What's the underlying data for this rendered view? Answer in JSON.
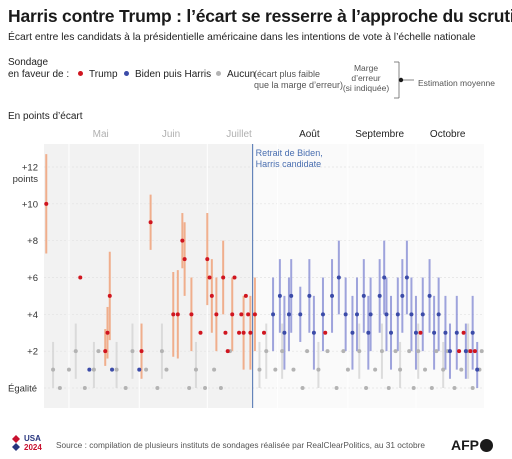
{
  "title": "Harris contre Trump : l’écart se resserre à l’approche du scrutin",
  "subtitle": "Écart entre les candidats à la présidentielle américaine dans les intentions de vote à l’échelle nationale",
  "legend": {
    "heading_line1": "Sondage",
    "heading_line2": "en faveur de :",
    "trump": "Trump",
    "biden_harris": "Biden puis Harris",
    "none": "Aucun",
    "none_note_line1": "(écart plus faible",
    "none_note_line2": "que la marge d’erreur)",
    "error_line1": "Marge",
    "error_line2": "d’erreur",
    "error_line3": "(si indiquée)",
    "estimate": "Estimation moyenne"
  },
  "unit_label": "En points d’écart",
  "footer": {
    "source": "Source : compilation de plusieurs instituts de sondages réalisée par RealClearPolitics, au 31 octobre",
    "logo_text_1": "USA",
    "logo_text_2": "2024",
    "agency": "AFP"
  },
  "colors": {
    "trump": "#d0151f",
    "biden_harris": "#3b4ba8",
    "none": "#b3b3b3",
    "trump_band": "#f0a27a",
    "biden_band": "#8d93d6",
    "none_band": "#d6d6d6",
    "shade": "#f2f2f2",
    "annotation": "#4a6fb0"
  },
  "chart_data": {
    "type": "scatter",
    "title": "",
    "xlabel": "",
    "ylabel": "En points d’écart",
    "x_axis": {
      "domain": [
        "2024-04-20",
        "2024-10-31"
      ],
      "month_labels": [
        {
          "label": "Mai",
          "date": "2024-05-15",
          "muted": true
        },
        {
          "label": "Juin",
          "date": "2024-06-15",
          "muted": true
        },
        {
          "label": "Juillet",
          "date": "2024-07-15",
          "muted": true
        },
        {
          "label": "Août",
          "date": "2024-08-15",
          "muted": false
        },
        {
          "label": "Septembre",
          "date": "2024-09-15",
          "muted": false
        },
        {
          "label": "Octobre",
          "date": "2024-10-15",
          "muted": false
        }
      ],
      "muted_until": "2024-07-21"
    },
    "y_axis": {
      "range": [
        0,
        13
      ],
      "ticks": [
        {
          "value": 12,
          "label": "+12"
        },
        {
          "value": 10,
          "label": "+10"
        },
        {
          "value": 8,
          "label": "+8"
        },
        {
          "value": 6,
          "label": "+6"
        },
        {
          "value": 4,
          "label": "+4"
        },
        {
          "value": 2,
          "label": "+2"
        },
        {
          "value": 0,
          "label": "Égalité"
        }
      ],
      "top_unit": "points"
    },
    "annotation": {
      "date": "2024-07-21",
      "line1": "Retrait de Biden,",
      "line2": "Harris candidate"
    },
    "series": [
      {
        "name": "Trump",
        "key": "trump",
        "points": [
          {
            "date": "2024-04-21",
            "v": 10,
            "lo": 7.3,
            "hi": 12.7
          },
          {
            "date": "2024-05-06",
            "v": 6
          },
          {
            "date": "2024-05-17",
            "v": 2,
            "lo": 1.2,
            "hi": 3.2
          },
          {
            "date": "2024-05-18",
            "v": 3,
            "lo": 1.6,
            "hi": 4.4
          },
          {
            "date": "2024-05-19",
            "v": 5,
            "lo": 2.6,
            "hi": 7.4
          },
          {
            "date": "2024-06-02",
            "v": 2,
            "lo": 0.5,
            "hi": 3.5
          },
          {
            "date": "2024-06-06",
            "v": 9,
            "lo": 7.5,
            "hi": 10.5
          },
          {
            "date": "2024-06-16",
            "v": 4,
            "lo": 1.7,
            "hi": 6.3
          },
          {
            "date": "2024-06-18",
            "v": 4,
            "lo": 1.6,
            "hi": 6.4
          },
          {
            "date": "2024-06-20",
            "v": 8,
            "lo": 6.5,
            "hi": 9.5
          },
          {
            "date": "2024-06-21",
            "v": 7,
            "lo": 5,
            "hi": 9
          },
          {
            "date": "2024-06-24",
            "v": 4,
            "lo": 2,
            "hi": 6
          },
          {
            "date": "2024-06-28",
            "v": 3
          },
          {
            "date": "2024-07-01",
            "v": 7,
            "lo": 4.5,
            "hi": 9.5
          },
          {
            "date": "2024-07-02",
            "v": 6
          },
          {
            "date": "2024-07-03",
            "v": 5,
            "lo": 3,
            "hi": 7
          },
          {
            "date": "2024-07-05",
            "v": 4,
            "lo": 2,
            "hi": 6
          },
          {
            "date": "2024-07-08",
            "v": 6,
            "lo": 4,
            "hi": 8
          },
          {
            "date": "2024-07-09",
            "v": 3
          },
          {
            "date": "2024-07-10",
            "v": 2
          },
          {
            "date": "2024-07-12",
            "v": 4,
            "lo": 2,
            "hi": 6
          },
          {
            "date": "2024-07-13",
            "v": 6
          },
          {
            "date": "2024-07-15",
            "v": 3
          },
          {
            "date": "2024-07-16",
            "v": 4
          },
          {
            "date": "2024-07-17",
            "v": 3,
            "lo": 1,
            "hi": 5
          },
          {
            "date": "2024-07-18",
            "v": 5
          },
          {
            "date": "2024-07-19",
            "v": 4
          },
          {
            "date": "2024-07-20",
            "v": 3,
            "lo": 1,
            "hi": 5
          },
          {
            "date": "2024-07-22",
            "v": 4,
            "lo": 2,
            "hi": 6
          },
          {
            "date": "2024-07-26",
            "v": 3
          },
          {
            "date": "2024-08-22",
            "v": 3
          },
          {
            "date": "2024-10-03",
            "v": 3
          },
          {
            "date": "2024-10-20",
            "v": 2
          },
          {
            "date": "2024-10-22",
            "v": 3
          },
          {
            "date": "2024-10-25",
            "v": 2
          },
          {
            "date": "2024-10-27",
            "v": 2
          }
        ]
      },
      {
        "name": "Biden puis Harris",
        "key": "biden_harris",
        "points": [
          {
            "date": "2024-05-10",
            "v": 1
          },
          {
            "date": "2024-05-20",
            "v": 1
          },
          {
            "date": "2024-06-01",
            "v": 1
          },
          {
            "date": "2024-07-30",
            "v": 4,
            "lo": 2,
            "hi": 6
          },
          {
            "date": "2024-08-02",
            "v": 5,
            "lo": 3,
            "hi": 7
          },
          {
            "date": "2024-08-04",
            "v": 3,
            "lo": 1,
            "hi": 5
          },
          {
            "date": "2024-08-06",
            "v": 4,
            "lo": 2,
            "hi": 6
          },
          {
            "date": "2024-08-07",
            "v": 5,
            "lo": 3,
            "hi": 7
          },
          {
            "date": "2024-08-11",
            "v": 4,
            "lo": 2.5,
            "hi": 5.5
          },
          {
            "date": "2024-08-15",
            "v": 5,
            "lo": 3,
            "hi": 7
          },
          {
            "date": "2024-08-17",
            "v": 3,
            "lo": 1,
            "hi": 5
          },
          {
            "date": "2024-08-21",
            "v": 4,
            "lo": 2,
            "hi": 6
          },
          {
            "date": "2024-08-25",
            "v": 5,
            "lo": 3,
            "hi": 7
          },
          {
            "date": "2024-08-28",
            "v": 6,
            "lo": 4,
            "hi": 8
          },
          {
            "date": "2024-08-31",
            "v": 4,
            "lo": 2,
            "hi": 6
          },
          {
            "date": "2024-09-03",
            "v": 3,
            "lo": 1,
            "hi": 5
          },
          {
            "date": "2024-09-05",
            "v": 4,
            "lo": 2,
            "hi": 6
          },
          {
            "date": "2024-09-08",
            "v": 5,
            "lo": 3,
            "hi": 7
          },
          {
            "date": "2024-09-10",
            "v": 3,
            "lo": 1,
            "hi": 5
          },
          {
            "date": "2024-09-11",
            "v": 4,
            "lo": 2,
            "hi": 6
          },
          {
            "date": "2024-09-15",
            "v": 5,
            "lo": 3,
            "hi": 7
          },
          {
            "date": "2024-09-17",
            "v": 6,
            "lo": 4,
            "hi": 8
          },
          {
            "date": "2024-09-18",
            "v": 4,
            "lo": 2,
            "hi": 6
          },
          {
            "date": "2024-09-20",
            "v": 3,
            "lo": 1,
            "hi": 5
          },
          {
            "date": "2024-09-23",
            "v": 4,
            "lo": 2,
            "hi": 6
          },
          {
            "date": "2024-09-25",
            "v": 5,
            "lo": 3,
            "hi": 7
          },
          {
            "date": "2024-09-27",
            "v": 6,
            "lo": 4,
            "hi": 8
          },
          {
            "date": "2024-09-29",
            "v": 4,
            "lo": 2,
            "hi": 6
          },
          {
            "date": "2024-10-01",
            "v": 3,
            "lo": 1,
            "hi": 5
          },
          {
            "date": "2024-10-04",
            "v": 4,
            "lo": 2,
            "hi": 6
          },
          {
            "date": "2024-10-07",
            "v": 5,
            "lo": 3,
            "hi": 7
          },
          {
            "date": "2024-10-09",
            "v": 3,
            "lo": 1,
            "hi": 5
          },
          {
            "date": "2024-10-11",
            "v": 4,
            "lo": 2,
            "hi": 6
          },
          {
            "date": "2024-10-14",
            "v": 3,
            "lo": 1,
            "hi": 5
          },
          {
            "date": "2024-10-16",
            "v": 2,
            "lo": 0.5,
            "hi": 3.5
          },
          {
            "date": "2024-10-19",
            "v": 3,
            "lo": 1,
            "hi": 5
          },
          {
            "date": "2024-10-23",
            "v": 2,
            "lo": 0.5,
            "hi": 3.5
          },
          {
            "date": "2024-10-26",
            "v": 3,
            "lo": 1,
            "hi": 5
          },
          {
            "date": "2024-10-28",
            "v": 1,
            "lo": 0,
            "hi": 2.5
          }
        ]
      },
      {
        "name": "Aucun",
        "key": "none",
        "points": [
          {
            "date": "2024-04-24",
            "v": 1,
            "lo": 0,
            "hi": 2.5
          },
          {
            "date": "2024-04-27",
            "v": 0
          },
          {
            "date": "2024-05-01",
            "v": 1
          },
          {
            "date": "2024-05-04",
            "v": 2,
            "lo": 0.5,
            "hi": 3.5
          },
          {
            "date": "2024-05-08",
            "v": 0
          },
          {
            "date": "2024-05-12",
            "v": 1,
            "lo": 0,
            "hi": 2.5
          },
          {
            "date": "2024-05-14",
            "v": 2
          },
          {
            "date": "2024-05-22",
            "v": 1,
            "lo": 0,
            "hi": 2.5
          },
          {
            "date": "2024-05-26",
            "v": 0
          },
          {
            "date": "2024-05-29",
            "v": 2,
            "lo": 0.5,
            "hi": 3.5
          },
          {
            "date": "2024-06-04",
            "v": 1
          },
          {
            "date": "2024-06-09",
            "v": 0
          },
          {
            "date": "2024-06-11",
            "v": 2,
            "lo": 0.5,
            "hi": 3.5
          },
          {
            "date": "2024-06-13",
            "v": 1
          },
          {
            "date": "2024-06-23",
            "v": 0
          },
          {
            "date": "2024-06-26",
            "v": 1,
            "lo": 0,
            "hi": 2.5
          },
          {
            "date": "2024-06-30",
            "v": 0
          },
          {
            "date": "2024-07-04",
            "v": 1
          },
          {
            "date": "2024-07-07",
            "v": 0
          },
          {
            "date": "2024-07-11",
            "v": 2
          },
          {
            "date": "2024-07-24",
            "v": 1,
            "lo": 0,
            "hi": 2.5
          },
          {
            "date": "2024-07-27",
            "v": 2,
            "lo": 0.5,
            "hi": 3.5
          },
          {
            "date": "2024-07-31",
            "v": 1
          },
          {
            "date": "2024-08-03",
            "v": 2,
            "lo": 0.5,
            "hi": 3.5
          },
          {
            "date": "2024-08-08",
            "v": 1
          },
          {
            "date": "2024-08-12",
            "v": 0
          },
          {
            "date": "2024-08-14",
            "v": 2
          },
          {
            "date": "2024-08-19",
            "v": 1,
            "lo": 0,
            "hi": 2.5
          },
          {
            "date": "2024-08-23",
            "v": 2
          },
          {
            "date": "2024-08-27",
            "v": 0
          },
          {
            "date": "2024-08-30",
            "v": 2
          },
          {
            "date": "2024-09-01",
            "v": 1
          },
          {
            "date": "2024-09-06",
            "v": 2,
            "lo": 0.5,
            "hi": 3.5
          },
          {
            "date": "2024-09-09",
            "v": 0
          },
          {
            "date": "2024-09-13",
            "v": 1
          },
          {
            "date": "2024-09-16",
            "v": 2,
            "lo": 0.5,
            "hi": 3.5
          },
          {
            "date": "2024-09-19",
            "v": 0
          },
          {
            "date": "2024-09-22",
            "v": 2
          },
          {
            "date": "2024-09-24",
            "v": 1,
            "lo": 0,
            "hi": 2.5
          },
          {
            "date": "2024-09-28",
            "v": 2
          },
          {
            "date": "2024-09-30",
            "v": 0
          },
          {
            "date": "2024-10-02",
            "v": 2,
            "lo": 0.5,
            "hi": 3.5
          },
          {
            "date": "2024-10-05",
            "v": 1
          },
          {
            "date": "2024-10-08",
            "v": 0
          },
          {
            "date": "2024-10-10",
            "v": 2
          },
          {
            "date": "2024-10-13",
            "v": 1,
            "lo": 0,
            "hi": 2.5
          },
          {
            "date": "2024-10-15",
            "v": 2
          },
          {
            "date": "2024-10-18",
            "v": 0
          },
          {
            "date": "2024-10-21",
            "v": 1
          },
          {
            "date": "2024-10-24",
            "v": 2,
            "lo": 0.5,
            "hi": 3.5
          },
          {
            "date": "2024-10-26",
            "v": 0
          },
          {
            "date": "2024-10-29",
            "v": 1
          },
          {
            "date": "2024-10-30",
            "v": 2
          }
        ]
      }
    ]
  }
}
